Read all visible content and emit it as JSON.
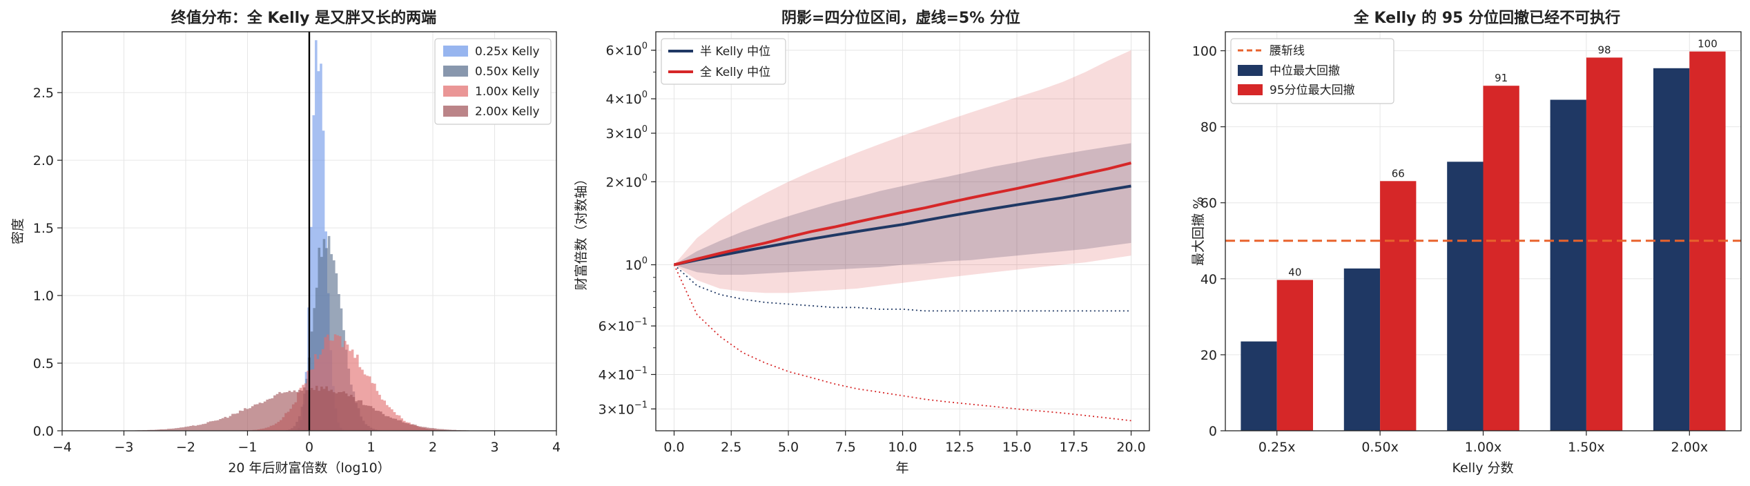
{
  "chart_data": [
    {
      "type": "histogram",
      "title": "终值分布：全 Kelly 是又胖又长的两端",
      "xlabel": "20 年后财富倍数（log10）",
      "ylabel": "密度",
      "xlim": [
        -4,
        4
      ],
      "ylim": [
        0,
        2.95
      ],
      "xticks": [
        "−4",
        "−3",
        "−2",
        "−1",
        "0",
        "1",
        "2",
        "3",
        "4"
      ],
      "yticks": [
        "0.0",
        "0.5",
        "1.0",
        "1.5",
        "2.0",
        "2.5"
      ],
      "grid": true,
      "legend_position": "top-right",
      "reference_line_x": 0,
      "series": [
        {
          "name": "0.25x Kelly",
          "color": "#6b95e8",
          "mode": 0.14,
          "peak": 2.85,
          "spread_left": 0.1,
          "spread_right": 0.12,
          "range": [
            -0.35,
            0.65
          ]
        },
        {
          "name": "0.50x Kelly",
          "color": "#5a6f8e",
          "mode": 0.25,
          "peak": 1.45,
          "spread_left": 0.18,
          "spread_right": 0.26,
          "range": [
            -0.7,
            1.3
          ]
        },
        {
          "name": "1.00x Kelly",
          "color": "#e26d6d",
          "mode": 0.4,
          "peak": 0.68,
          "spread_left": 0.42,
          "spread_right": 0.55,
          "range": [
            -2.2,
            3.0
          ]
        },
        {
          "name": "2.00x Kelly",
          "color": "#9e5055",
          "mode": 0.1,
          "peak": 0.32,
          "spread_left": 0.95,
          "spread_right": 0.8,
          "range": [
            -3.3,
            3.3
          ]
        }
      ]
    },
    {
      "type": "line",
      "title": "阴影=四分位区间，虚线=5% 分位",
      "xlabel": "年",
      "ylabel": "财富倍数（对数轴）",
      "y_scale": "log",
      "xlim": [
        -0.8,
        20.8
      ],
      "ylim": [
        0.25,
        7.0
      ],
      "xticks": [
        "0.0",
        "2.5",
        "5.0",
        "7.5",
        "10.0",
        "12.5",
        "15.0",
        "17.5",
        "20.0"
      ],
      "yticks": [
        {
          "value": 0.3,
          "mant": "3",
          "exp": "−1"
        },
        {
          "value": 0.4,
          "mant": "4",
          "exp": "−1"
        },
        {
          "value": 0.6,
          "mant": "6",
          "exp": "−1"
        },
        {
          "value": 1.0,
          "mant": "",
          "exp": "0"
        },
        {
          "value": 2.0,
          "mant": "2",
          "exp": "0"
        },
        {
          "value": 3.0,
          "mant": "3",
          "exp": "0"
        },
        {
          "value": 4.0,
          "mant": "4",
          "exp": "0"
        },
        {
          "value": 6.0,
          "mant": "6",
          "exp": "0"
        }
      ],
      "grid": true,
      "legend_position": "top-left",
      "x": [
        0,
        1,
        2,
        3,
        4,
        5,
        6,
        7,
        8,
        9,
        10,
        11,
        12,
        13,
        14,
        15,
        16,
        17,
        18,
        19,
        20
      ],
      "series": [
        {
          "name": "半 Kelly 中位",
          "color": "#1f3864",
          "median": [
            1.0,
            1.04,
            1.08,
            1.12,
            1.16,
            1.2,
            1.24,
            1.28,
            1.32,
            1.36,
            1.4,
            1.45,
            1.5,
            1.55,
            1.6,
            1.65,
            1.7,
            1.75,
            1.81,
            1.87,
            1.93
          ],
          "q25": [
            1.0,
            0.94,
            0.92,
            0.92,
            0.93,
            0.94,
            0.95,
            0.96,
            0.97,
            0.98,
            1.0,
            1.01,
            1.03,
            1.04,
            1.06,
            1.08,
            1.1,
            1.12,
            1.14,
            1.17,
            1.2
          ],
          "q75": [
            1.0,
            1.12,
            1.22,
            1.32,
            1.41,
            1.5,
            1.59,
            1.68,
            1.76,
            1.85,
            1.93,
            2.01,
            2.09,
            2.18,
            2.27,
            2.35,
            2.44,
            2.52,
            2.6,
            2.68,
            2.76
          ],
          "p05": [
            1.0,
            0.84,
            0.78,
            0.75,
            0.73,
            0.72,
            0.71,
            0.7,
            0.7,
            0.69,
            0.69,
            0.68,
            0.68,
            0.68,
            0.68,
            0.68,
            0.68,
            0.68,
            0.68,
            0.68,
            0.68
          ]
        },
        {
          "name": "全 Kelly 中位",
          "color": "#d62728",
          "median": [
            1.0,
            1.05,
            1.1,
            1.15,
            1.2,
            1.26,
            1.32,
            1.37,
            1.43,
            1.49,
            1.55,
            1.61,
            1.68,
            1.75,
            1.82,
            1.89,
            1.97,
            2.05,
            2.14,
            2.23,
            2.34
          ],
          "q25": [
            1.0,
            0.88,
            0.82,
            0.8,
            0.79,
            0.79,
            0.8,
            0.81,
            0.82,
            0.84,
            0.86,
            0.88,
            0.9,
            0.92,
            0.94,
            0.96,
            0.98,
            1.0,
            1.02,
            1.05,
            1.08
          ],
          "q75": [
            1.0,
            1.25,
            1.45,
            1.64,
            1.82,
            2.0,
            2.18,
            2.36,
            2.55,
            2.74,
            2.94,
            3.14,
            3.35,
            3.57,
            3.8,
            4.05,
            4.3,
            4.6,
            5.0,
            5.5,
            6.0
          ],
          "p05": [
            1.0,
            0.66,
            0.55,
            0.48,
            0.44,
            0.41,
            0.39,
            0.37,
            0.355,
            0.345,
            0.335,
            0.325,
            0.318,
            0.312,
            0.306,
            0.3,
            0.295,
            0.29,
            0.284,
            0.278,
            0.272
          ]
        }
      ]
    },
    {
      "type": "bar",
      "title": "全 Kelly 的 95 分位回撤已经不可执行",
      "xlabel": "Kelly 分数",
      "ylabel": "最大回撤 %",
      "ylim": [
        0,
        105
      ],
      "yticks": [
        "0",
        "20",
        "40",
        "60",
        "80",
        "100"
      ],
      "grid": true,
      "legend_position": "top-left",
      "categories": [
        "0.25x",
        "0.50x",
        "1.00x",
        "1.50x",
        "2.00x"
      ],
      "reference_line": {
        "name": "腰斩线",
        "value": 50,
        "color": "#e8622c"
      },
      "series": [
        {
          "name": "中位最大回撤",
          "color": "#1f3864",
          "values": [
            23.5,
            42.7,
            70.8,
            87.1,
            95.4
          ],
          "labels": [
            "",
            "",
            "",
            "",
            ""
          ]
        },
        {
          "name": "95分位最大回撤",
          "color": "#d62728",
          "values": [
            39.7,
            65.7,
            90.8,
            98.2,
            99.8
          ],
          "labels": [
            "40",
            "66",
            "91",
            "98",
            "100"
          ]
        }
      ]
    }
  ]
}
